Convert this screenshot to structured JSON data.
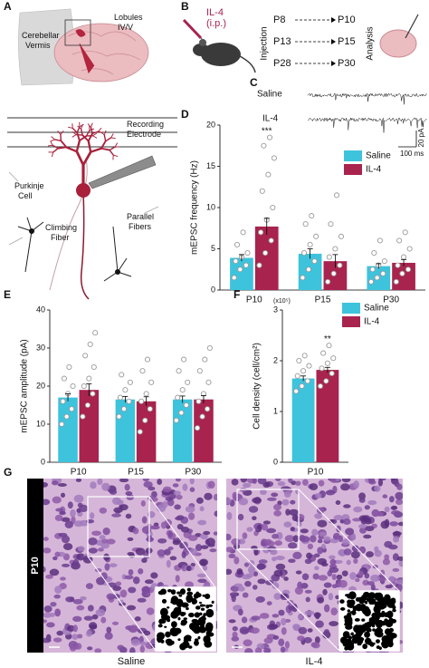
{
  "panel_labels": [
    "A",
    "B",
    "C",
    "D",
    "E",
    "F",
    "G"
  ],
  "panel_a": {
    "vermis_label": [
      "Cerebellar",
      "Vermis"
    ],
    "lobules_label": [
      "Lobules",
      "IV/V"
    ],
    "electrode_label": [
      "Recording",
      "Electrode"
    ],
    "purkinje_label": [
      "Purkinje",
      "Cell"
    ],
    "climbing_label": [
      "Climbing",
      "Fiber"
    ],
    "parallel_label": [
      "Parallel",
      "Fibers"
    ]
  },
  "panel_b": {
    "drug": [
      "IL-4",
      "(i.p.)"
    ],
    "injection_label": "Injection",
    "analysis_label": "Analysis",
    "schedule": [
      [
        "P8",
        "P10"
      ],
      [
        "P13",
        "P15"
      ],
      [
        "P28",
        "P30"
      ]
    ]
  },
  "panel_c": {
    "traces": [
      "Saline",
      "IL-4"
    ],
    "scale_current": "20 pA",
    "scale_time": "100 ms"
  },
  "chart_data": [
    {
      "type": "bar",
      "y_label": "mEPSC frequency (Hz)",
      "categories": [
        "P10",
        "P15",
        "P30"
      ],
      "ylim": [
        0,
        20
      ],
      "yticks": [
        0,
        5,
        10,
        15,
        20
      ],
      "legend": "upper right",
      "series": [
        {
          "name": "Saline",
          "color": "#3ec3dc",
          "values": [
            3.9,
            4.4,
            2.9
          ],
          "errors": [
            0.4,
            0.6,
            0.3
          ],
          "points": [
            [
              1.5,
              2.5,
              3,
              3.5,
              4,
              4.5,
              5.5,
              7
            ],
            [
              1.5,
              2.5,
              3.5,
              4.5,
              5.5,
              6.5,
              8,
              9
            ],
            [
              1,
              1.5,
              2,
              2.5,
              3,
              3.5,
              4.5,
              6
            ]
          ]
        },
        {
          "name": "IL-4",
          "color": "#a8234e",
          "values": [
            7.7,
            3.5,
            3.3
          ],
          "errors": [
            1.0,
            0.8,
            0.4
          ],
          "annotations": [
            "***",
            null,
            null
          ],
          "points": [
            [
              3,
              4.5,
              6,
              7,
              8.5,
              10,
              12,
              14,
              16,
              17.5,
              18.5
            ],
            [
              1,
              2,
              3,
              4,
              5,
              6.5,
              8,
              11.5
            ],
            [
              1,
              2,
              2.5,
              3,
              4,
              5,
              6,
              7
            ]
          ]
        }
      ]
    },
    {
      "type": "bar",
      "y_label": "mEPSC amplitude (pA)",
      "categories": [
        "P10",
        "P15",
        "P30"
      ],
      "ylim": [
        0,
        40
      ],
      "yticks": [
        0,
        10,
        20,
        30,
        40
      ],
      "series": [
        {
          "name": "Saline",
          "color": "#3ec3dc",
          "values": [
            17,
            16.5,
            16.5
          ],
          "errors": [
            1.0,
            0.8,
            0.9
          ],
          "points": [
            [
              10,
              12,
              14,
              16,
              18,
              20,
              22,
              25
            ],
            [
              12,
              14,
              16,
              17,
              19,
              21,
              23
            ],
            [
              11,
              13,
              15,
              17,
              19,
              21,
              24,
              27
            ]
          ]
        },
        {
          "name": "IL-4",
          "color": "#a8234e",
          "values": [
            19,
            16,
            16.5
          ],
          "errors": [
            1.6,
            1.2,
            1.0
          ],
          "points": [
            [
              12,
              15,
              18,
              20,
              22,
              25,
              28,
              31,
              34
            ],
            [
              8,
              11,
              14,
              16,
              18,
              21,
              24,
              27
            ],
            [
              9,
              12,
              14,
              16,
              18,
              21,
              24,
              27,
              30
            ]
          ]
        }
      ]
    },
    {
      "type": "bar",
      "y_label": "Cell density (cell/cm²)",
      "y_unit_label": "(x10⁵)",
      "categories": [
        "P10"
      ],
      "ylim": [
        0,
        3
      ],
      "yticks": [
        0,
        1,
        2,
        3
      ],
      "legend": "upper right",
      "series": [
        {
          "name": "Saline",
          "color": "#3ec3dc",
          "values": [
            1.65
          ],
          "errors": [
            0.05
          ],
          "points": [
            [
              1.4,
              1.5,
              1.6,
              1.7,
              1.8,
              1.9,
              2.0,
              2.1
            ]
          ]
        },
        {
          "name": "IL-4",
          "color": "#a8234e",
          "values": [
            1.82
          ],
          "errors": [
            0.05
          ],
          "annotations": [
            "**"
          ],
          "points": [
            [
              1.5,
              1.6,
              1.75,
              1.85,
              1.95,
              2.05,
              2.15,
              2.3
            ]
          ]
        }
      ]
    }
  ],
  "panel_g": {
    "row_label": "P10",
    "groups": [
      "Saline",
      "IL-4"
    ]
  }
}
